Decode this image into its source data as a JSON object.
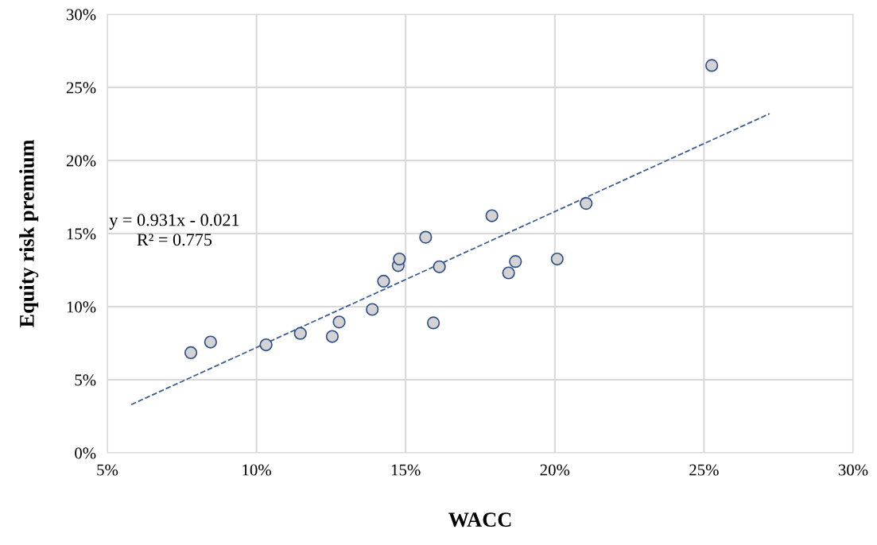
{
  "chart_data": {
    "type": "scatter",
    "xlabel": "WACC",
    "ylabel": "Equity risk premium",
    "annotations": [
      "y = 0.931x - 0.021",
      "R² = 0.775"
    ],
    "xlim": [
      5,
      30
    ],
    "ylim": [
      0,
      30
    ],
    "xticks": [
      {
        "value": 5,
        "label": "5%"
      },
      {
        "value": 10,
        "label": "10%"
      },
      {
        "value": 15,
        "label": "15%"
      },
      {
        "value": 20,
        "label": "20%"
      },
      {
        "value": 25,
        "label": "25%"
      },
      {
        "value": 30,
        "label": "30%"
      }
    ],
    "yticks": [
      {
        "value": 0,
        "label": "0%"
      },
      {
        "value": 5,
        "label": "5%"
      },
      {
        "value": 10,
        "label": "10%"
      },
      {
        "value": 15,
        "label": "15%"
      },
      {
        "value": 20,
        "label": "20%"
      },
      {
        "value": 25,
        "label": "25%"
      },
      {
        "value": 30,
        "label": "30%"
      }
    ],
    "grid": true,
    "series": [
      {
        "marker": "circle",
        "color": "#d3d3d3",
        "x": [
          7.8,
          8.46,
          10.32,
          11.47,
          12.54,
          12.77,
          13.88,
          14.26,
          14.75,
          14.79,
          15.67,
          15.93,
          16.13,
          17.89,
          18.45,
          18.68,
          20.08,
          21.05,
          25.26
        ],
        "values": [
          6.85,
          7.58,
          7.39,
          8.17,
          7.96,
          8.95,
          9.81,
          11.74,
          12.81,
          13.26,
          14.75,
          8.89,
          12.73,
          16.22,
          12.31,
          13.09,
          13.26,
          17.06,
          26.5
        ]
      },
      {
        "type": "line",
        "color": "#3d5f95",
        "line_style": "dashed",
        "x": [
          5.8,
          27.2
        ],
        "values": [
          3.3,
          23.2
        ]
      }
    ]
  }
}
